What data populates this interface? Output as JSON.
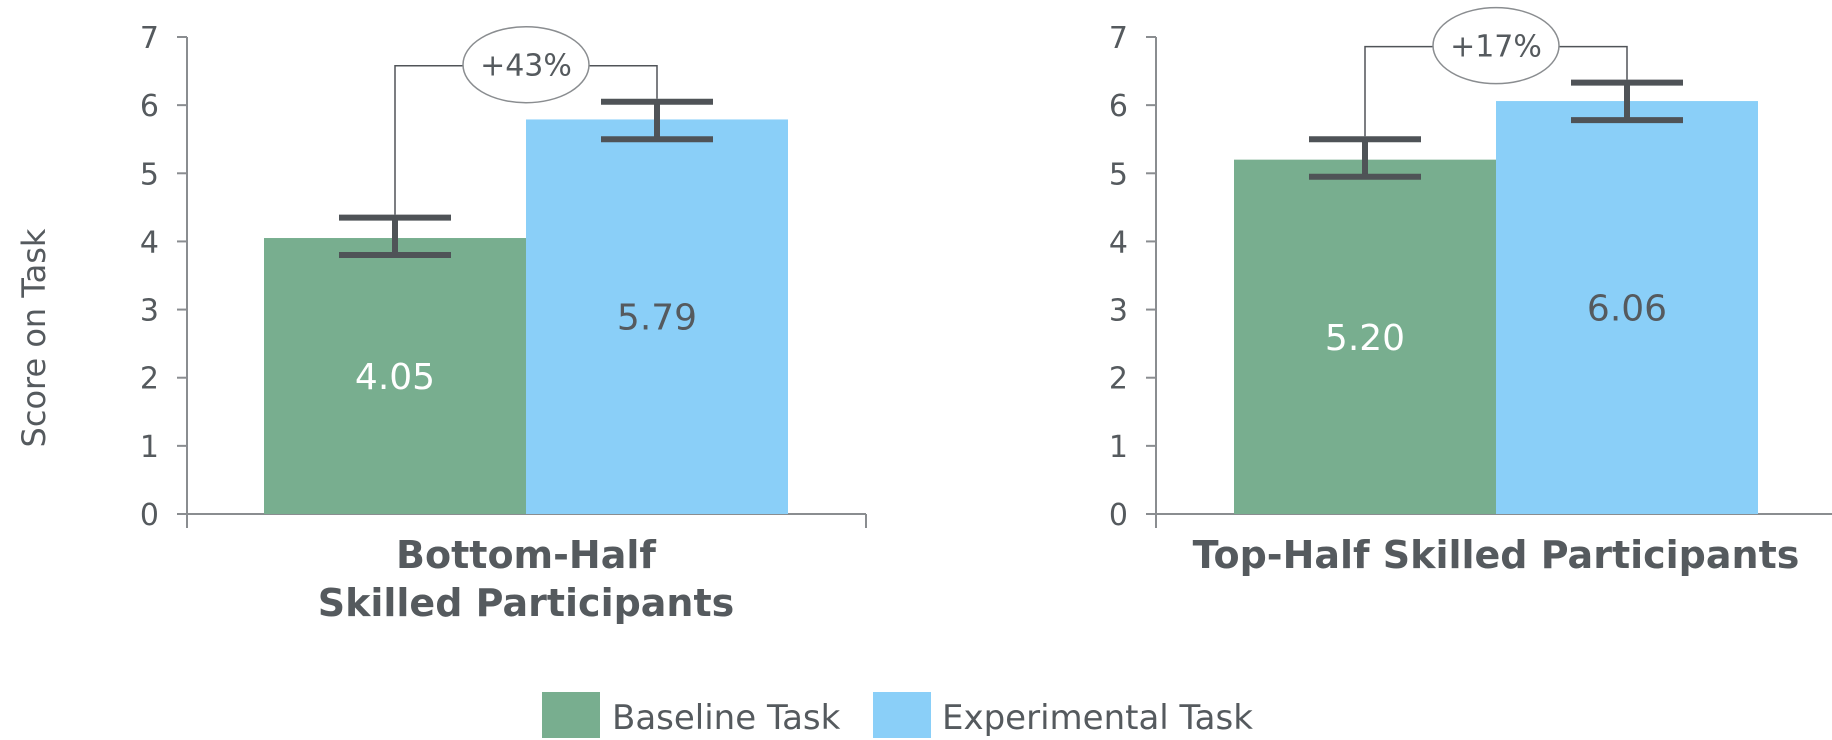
{
  "chart_data": [
    {
      "type": "bar",
      "category": "Bottom-Half\nSkilled Participants",
      "category_lines": [
        "Bottom-Half",
        "Skilled Participants"
      ],
      "ylabel": "Score on Task",
      "ylim": [
        0,
        7
      ],
      "yticks": [
        "0",
        "1",
        "2",
        "3",
        "4",
        "5",
        "6",
        "7"
      ],
      "series": [
        {
          "name": "Baseline Task",
          "value": 4.05,
          "label": "4.05",
          "error": [
            3.8,
            4.35
          ]
        },
        {
          "name": "Experimental Task",
          "value": 5.79,
          "label": "5.79",
          "error": [
            5.5,
            6.05
          ]
        }
      ],
      "annotation": "+43%"
    },
    {
      "type": "bar",
      "category": "Top-Half Skilled Participants",
      "category_lines": [
        "Top-Half Skilled Participants"
      ],
      "ylim": [
        0,
        7
      ],
      "yticks": [
        "0",
        "1",
        "2",
        "3",
        "4",
        "5",
        "6",
        "7"
      ],
      "series": [
        {
          "name": "Baseline Task",
          "value": 5.2,
          "label": "5.20",
          "error": [
            4.95,
            5.5
          ]
        },
        {
          "name": "Experimental Task",
          "value": 6.06,
          "label": "6.06",
          "error": [
            5.78,
            6.33
          ]
        }
      ],
      "annotation": "+17%"
    }
  ],
  "legend": [
    {
      "label": "Baseline Task",
      "color": "#78ae8f"
    },
    {
      "label": "Experimental Task",
      "color": "#8acff8"
    }
  ],
  "colors": {
    "baseline": "#78ae8f",
    "experimental": "#8acff8",
    "text": "#555a5e",
    "axis": "#8a8d90",
    "error_bar": "#4f5357",
    "baseline_value_text": "#ffffff",
    "experimental_value_text": "#555a5e"
  }
}
